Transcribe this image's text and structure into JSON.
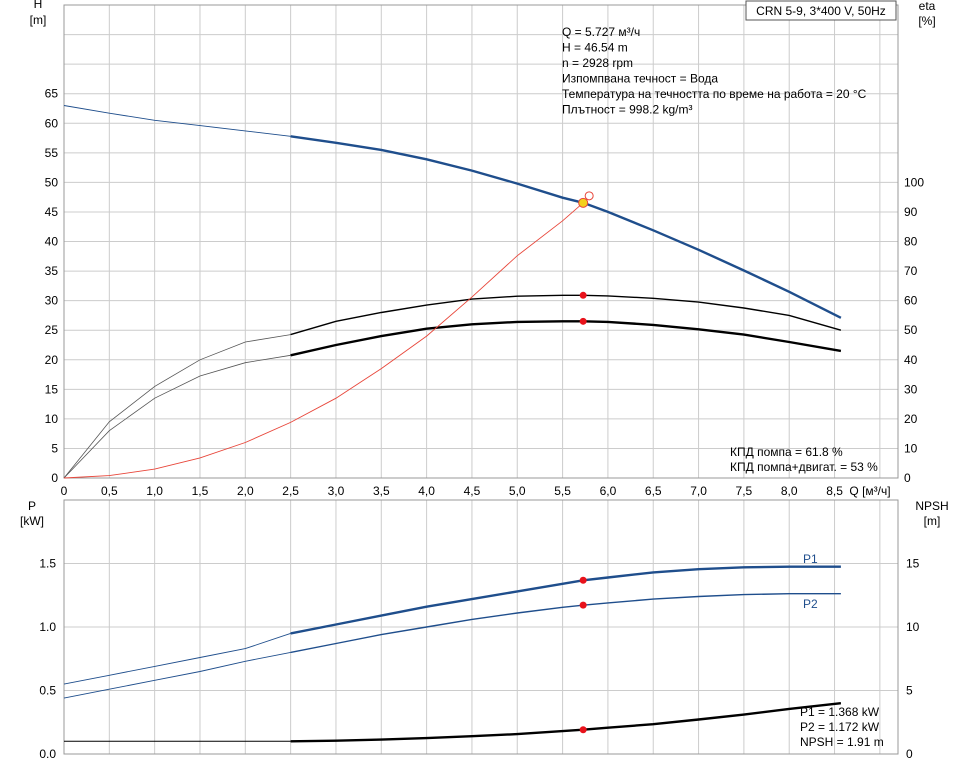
{
  "pump_title": "CRN 5-9, 3*400 V, 50Hz",
  "top": {
    "y_left_label": "H",
    "y_left_unit": "[m]",
    "y_right_label": "eta",
    "y_right_unit": "[%]",
    "x_label": "Q [м³/ч]",
    "info_lines": [
      "Q = 5.727 м³/ч",
      "H = 46.54 m",
      "n = 2928 rpm",
      "Изпомпвана течност = Вода",
      "Температура на течността по време на работа = 20 °C",
      "Плътност = 998.2 kg/m³"
    ],
    "eff_lines": [
      "КПД помпа = 61.8 %",
      "КПД помпа+двигат. = 53 %"
    ]
  },
  "bottom": {
    "y_left_label": "P",
    "y_left_unit": "[kW]",
    "y_right_label": "NPSH",
    "y_right_unit": "[m]",
    "info_lines": [
      "P1 = 1.368 kW",
      "P2 = 1.172 kW",
      "NPSH = 1.91 m"
    ]
  },
  "chart_data": [
    {
      "type": "line",
      "panel": "top",
      "x_ticks": [
        "0",
        "0,5",
        "1,0",
        "1,5",
        "2,0",
        "2,5",
        "3,0",
        "3,5",
        "4,0",
        "4,5",
        "5,0",
        "5,5",
        "6,0",
        "6,5",
        "7,0",
        "7,5",
        "8,0",
        "8,5"
      ],
      "y_left_ticks": [
        "0",
        "5",
        "10",
        "15",
        "20",
        "25",
        "30",
        "35",
        "40",
        "45",
        "50",
        "55",
        "60",
        "65"
      ],
      "y_right_ticks": [
        "0",
        "10",
        "20",
        "30",
        "40",
        "50",
        "60",
        "70",
        "80",
        "90",
        "100"
      ],
      "xlim": [
        0,
        9.2
      ],
      "ylim": [
        0,
        80
      ],
      "y_right_lim": [
        0,
        160
      ],
      "grid": true,
      "series": [
        {
          "name": "H",
          "axis": "left",
          "color": "#1f4e8c",
          "x": [
            0,
            0.5,
            1.0,
            1.5,
            2.0,
            2.5,
            3.0,
            3.5,
            4.0,
            4.5,
            5.0,
            5.5,
            5.727,
            6.0,
            6.5,
            7.0,
            7.5,
            8.0,
            8.57
          ],
          "y": [
            63.0,
            61.7,
            60.5,
            59.6,
            58.7,
            57.8,
            56.7,
            55.5,
            53.9,
            52.0,
            49.8,
            47.4,
            46.54,
            45.0,
            41.9,
            38.6,
            35.1,
            31.5,
            27.1
          ]
        },
        {
          "name": "eta pump",
          "axis": "right",
          "color": "#000000",
          "x": [
            0,
            0.5,
            1.0,
            1.5,
            2.0,
            2.5,
            3.0,
            3.5,
            4.0,
            4.5,
            5.0,
            5.5,
            5.727,
            6.0,
            6.5,
            7.0,
            7.5,
            8.0,
            8.57
          ],
          "y": [
            0,
            19,
            31,
            40,
            46,
            48.5,
            53,
            56,
            58.5,
            60.5,
            61.5,
            61.8,
            61.8,
            61.6,
            60.8,
            59.5,
            57.5,
            55,
            50
          ]
        },
        {
          "name": "eta pump+motor",
          "axis": "right",
          "color": "#000000",
          "x": [
            0,
            0.5,
            1.0,
            1.5,
            2.0,
            2.5,
            3.0,
            3.5,
            4.0,
            4.5,
            5.0,
            5.5,
            5.727,
            6.0,
            6.5,
            7.0,
            7.5,
            8.0,
            8.57
          ],
          "y": [
            0,
            16,
            27,
            34.5,
            39,
            41.5,
            45,
            48,
            50.5,
            52,
            52.8,
            53,
            53,
            52.8,
            51.8,
            50.3,
            48.5,
            46,
            43
          ]
        },
        {
          "name": "system curve",
          "axis": "left",
          "color": "#e8463a",
          "x": [
            0,
            0.5,
            1.0,
            1.5,
            2.0,
            2.5,
            3.0,
            3.5,
            4.0,
            4.5,
            5.0,
            5.5,
            5.727
          ],
          "y": [
            0,
            0.4,
            1.5,
            3.4,
            6.0,
            9.4,
            13.5,
            18.5,
            24.0,
            30.6,
            37.6,
            43.5,
            46.54
          ]
        }
      ],
      "operating_point": {
        "x": 5.727,
        "y": 46.54,
        "eta_pump": 61.8,
        "eta_total": 53
      }
    },
    {
      "type": "line",
      "panel": "bottom",
      "y_left_ticks": [
        "0.0",
        "0.5",
        "1.0",
        "1.5"
      ],
      "y_right_ticks": [
        "0",
        "5",
        "10",
        "15"
      ],
      "xlim": [
        0,
        9.2
      ],
      "ylim": [
        0,
        2.0
      ],
      "y_right_lim": [
        0,
        20
      ],
      "grid": true,
      "series": [
        {
          "name": "P1",
          "axis": "left",
          "color": "#1f4e8c",
          "x": [
            0,
            0.5,
            1.0,
            1.5,
            2.0,
            2.5,
            3.0,
            3.5,
            4.0,
            4.5,
            5.0,
            5.5,
            5.727,
            6.0,
            6.5,
            7.0,
            7.5,
            8.0,
            8.57
          ],
          "y": [
            0.55,
            0.62,
            0.69,
            0.76,
            0.83,
            0.95,
            1.02,
            1.09,
            1.16,
            1.22,
            1.28,
            1.34,
            1.368,
            1.39,
            1.43,
            1.455,
            1.47,
            1.475,
            1.475
          ]
        },
        {
          "name": "P2",
          "axis": "left",
          "color": "#1f4e8c",
          "x": [
            0,
            0.5,
            1.0,
            1.5,
            2.0,
            2.5,
            3.0,
            3.5,
            4.0,
            4.5,
            5.0,
            5.5,
            5.727,
            6.0,
            6.5,
            7.0,
            7.5,
            8.0,
            8.57
          ],
          "y": [
            0.44,
            0.51,
            0.58,
            0.65,
            0.73,
            0.8,
            0.87,
            0.94,
            1.0,
            1.06,
            1.11,
            1.155,
            1.172,
            1.19,
            1.22,
            1.24,
            1.255,
            1.262,
            1.262
          ]
        },
        {
          "name": "NPSH",
          "axis": "right",
          "color": "#000000",
          "x": [
            0,
            0.5,
            1.0,
            1.5,
            2.0,
            2.5,
            3.0,
            3.5,
            4.0,
            4.5,
            5.0,
            5.5,
            5.727,
            6.0,
            6.5,
            7.0,
            7.5,
            8.0,
            8.57
          ],
          "y": [
            1.0,
            1.0,
            1.0,
            1.0,
            1.0,
            1.0,
            1.05,
            1.13,
            1.25,
            1.4,
            1.57,
            1.8,
            1.91,
            2.07,
            2.35,
            2.72,
            3.1,
            3.55,
            4.0
          ]
        }
      ],
      "curve_labels": [
        "P1",
        "P2"
      ],
      "operating_point": {
        "x": 5.727,
        "P1": 1.368,
        "P2": 1.172,
        "NPSH": 1.91
      }
    }
  ]
}
